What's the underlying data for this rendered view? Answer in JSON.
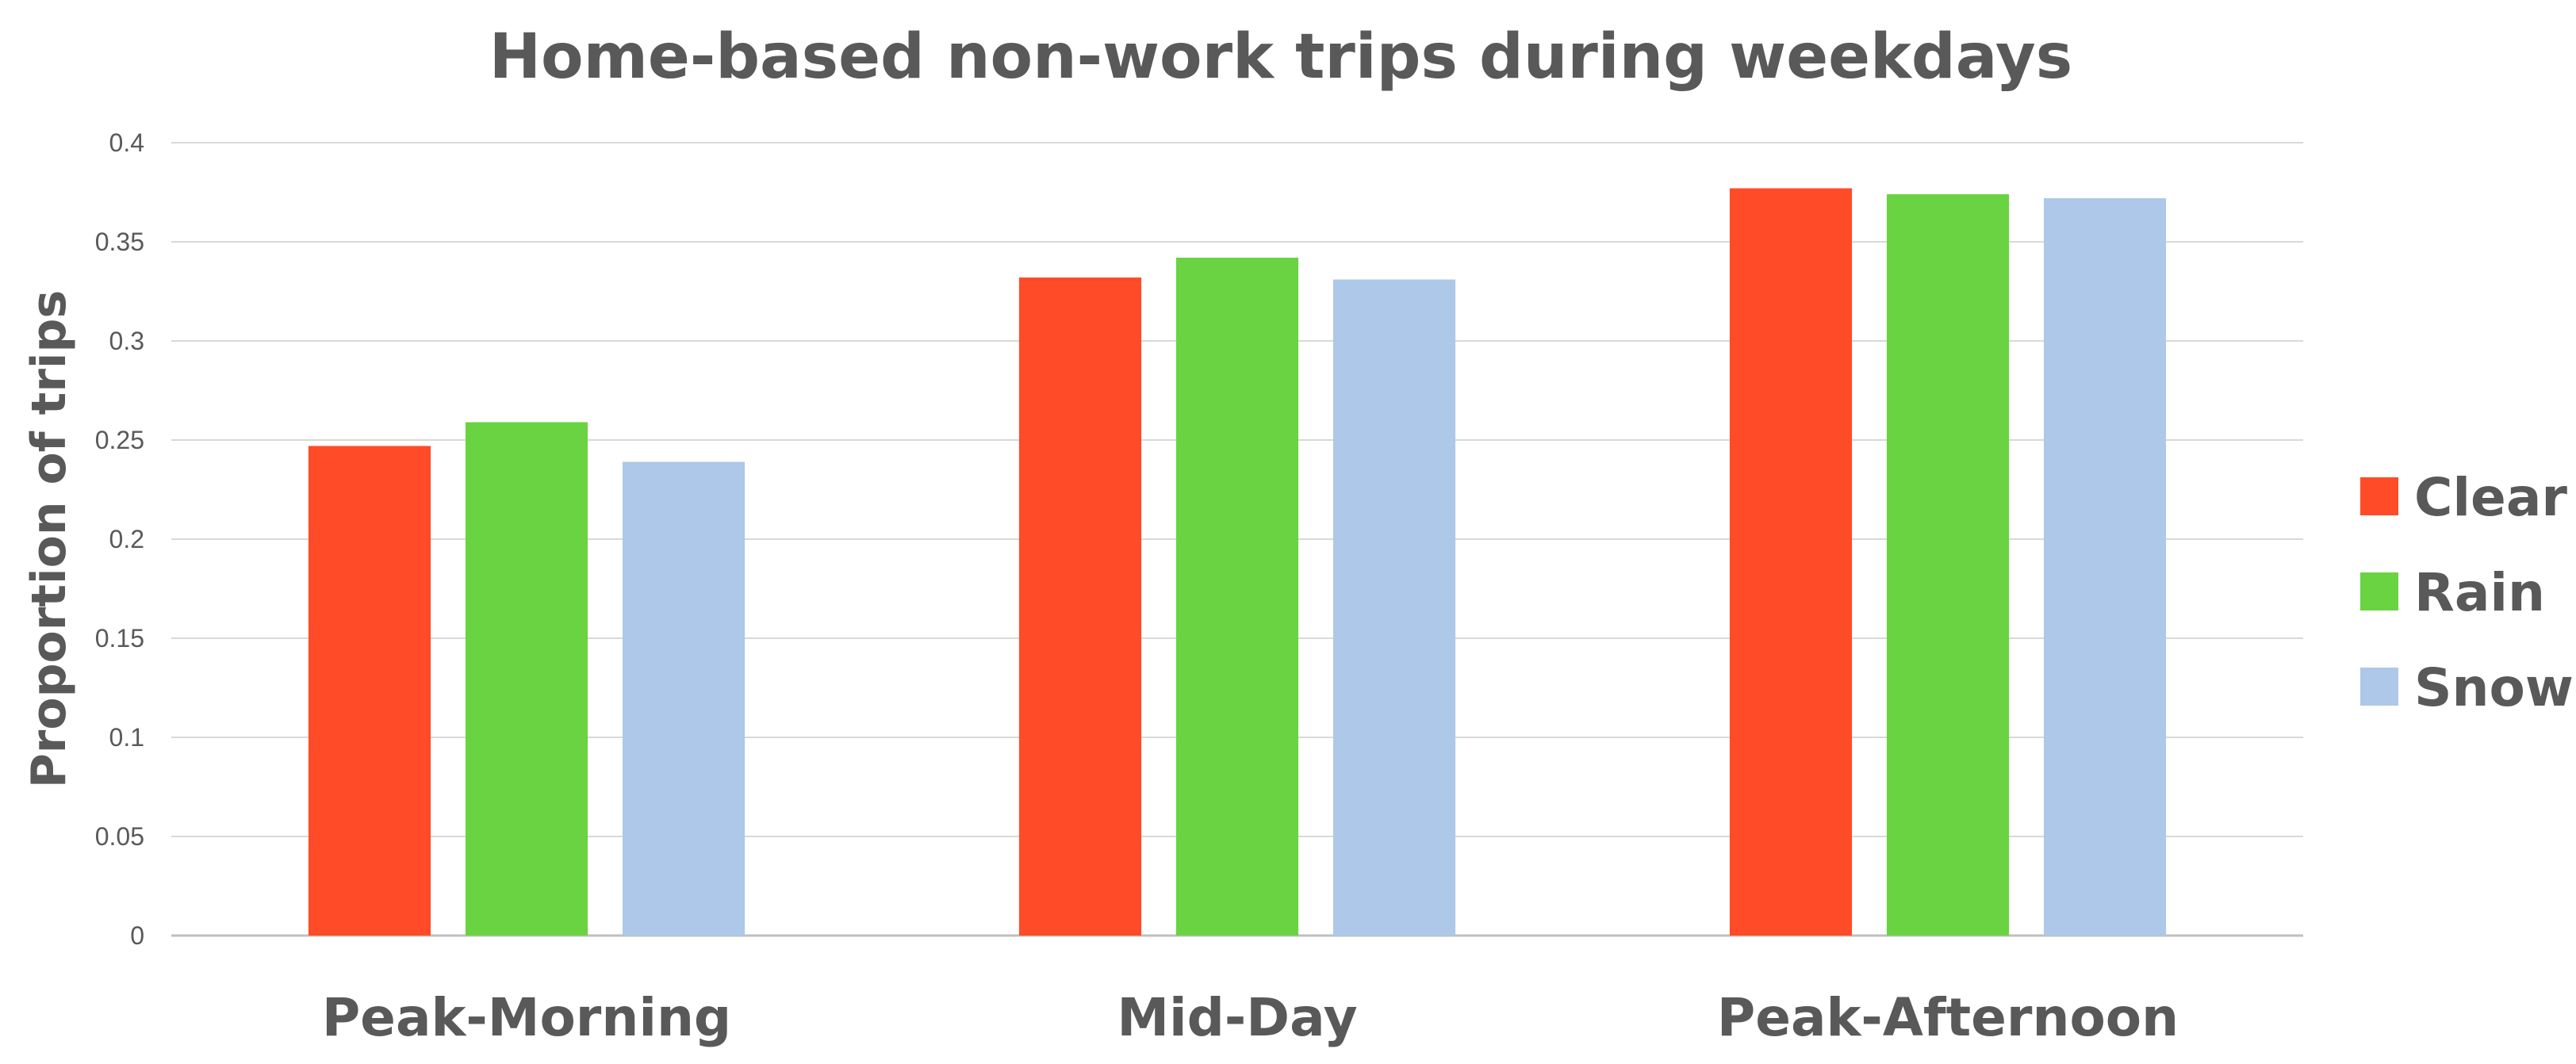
{
  "chart_data": {
    "type": "bar",
    "title": "Home-based non-work trips during weekdays",
    "xlabel": "",
    "ylabel": "Proportion of trips",
    "categories": [
      "Peak-Morning",
      "Mid-Day",
      "Peak-Afternoon"
    ],
    "series": [
      {
        "name": "Clear",
        "color": "#ff4b28",
        "values": [
          0.247,
          0.332,
          0.377
        ]
      },
      {
        "name": "Rain",
        "color": "#6ad341",
        "values": [
          0.259,
          0.342,
          0.374
        ]
      },
      {
        "name": "Snow",
        "color": "#adc8e8",
        "values": [
          0.239,
          0.331,
          0.372
        ]
      }
    ],
    "ylim": [
      0,
      0.4
    ],
    "yticks": [
      "0",
      "0.05",
      "0.1",
      "0.15",
      "0.2",
      "0.25",
      "0.3",
      "0.35",
      "0.4"
    ],
    "grid": true,
    "legend_position": "right"
  }
}
